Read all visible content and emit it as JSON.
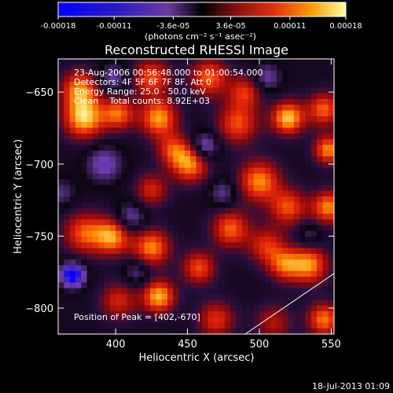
{
  "chart_data": {
    "type": "heatmap",
    "title": "Reconstructed RHESSI Image",
    "xlabel": "Heliocentric X (arcsec)",
    "ylabel": "Heliocentric Y (arcsec)",
    "xlim": [
      360,
      552
    ],
    "ylim": [
      -818,
      -627
    ],
    "x_ticks": [
      400,
      450,
      500,
      550
    ],
    "y_ticks": [
      -650,
      -700,
      -750,
      -800
    ],
    "colorbar": {
      "range": [
        -0.00018,
        0.00018
      ],
      "tick_labels": [
        "-0.00018",
        "-0.00011",
        "-3.6e-05",
        "3.6e-05",
        "0.00011",
        "0.00018"
      ],
      "unit_label": "(photons cm⁻² s⁻¹ asec⁻²)"
    },
    "annotations": [
      "23-Aug-2006 00:56:48.000 to 01:00:54.000",
      "Detectors: 4F 5F 6F 7F 8F, Att 0",
      "Energy Range: 25.0 - 50.0 keV",
      "Clean    Total counts: 8.92E+03"
    ],
    "peak_label": "Position of Peak = [402,-670]",
    "footer_date": "18-Jul-2013 01:09",
    "blobs": [
      {
        "x": 375,
        "y": -648,
        "v": 0.8,
        "s": 9
      },
      {
        "x": 378,
        "y": -668,
        "v": 1.0,
        "s": 10
      },
      {
        "x": 402,
        "y": -665,
        "v": 0.75,
        "s": 8
      },
      {
        "x": 425,
        "y": -640,
        "v": 0.7,
        "s": 9
      },
      {
        "x": 430,
        "y": -668,
        "v": 0.9,
        "s": 9
      },
      {
        "x": 465,
        "y": -640,
        "v": 0.75,
        "s": 9
      },
      {
        "x": 485,
        "y": -672,
        "v": 0.7,
        "s": 10
      },
      {
        "x": 490,
        "y": -650,
        "v": 0.6,
        "s": 8
      },
      {
        "x": 520,
        "y": -668,
        "v": 1.0,
        "s": 8
      },
      {
        "x": 545,
        "y": -662,
        "v": 0.75,
        "s": 8
      },
      {
        "x": 548,
        "y": -690,
        "v": 0.85,
        "s": 7
      },
      {
        "x": 452,
        "y": -700,
        "v": 0.85,
        "s": 9
      },
      {
        "x": 440,
        "y": -690,
        "v": 0.6,
        "s": 8
      },
      {
        "x": 425,
        "y": -718,
        "v": 0.55,
        "s": 8
      },
      {
        "x": 500,
        "y": -712,
        "v": 0.85,
        "s": 10
      },
      {
        "x": 520,
        "y": -730,
        "v": 0.7,
        "s": 9
      },
      {
        "x": 548,
        "y": -730,
        "v": 0.85,
        "s": 8
      },
      {
        "x": 480,
        "y": -745,
        "v": 0.75,
        "s": 9
      },
      {
        "x": 505,
        "y": -757,
        "v": 0.6,
        "s": 9
      },
      {
        "x": 378,
        "y": -748,
        "v": 0.7,
        "s": 10
      },
      {
        "x": 398,
        "y": -750,
        "v": 0.9,
        "s": 9
      },
      {
        "x": 425,
        "y": -758,
        "v": 0.85,
        "s": 9
      },
      {
        "x": 458,
        "y": -772,
        "v": 0.7,
        "s": 8
      },
      {
        "x": 535,
        "y": -770,
        "v": 0.85,
        "s": 9
      },
      {
        "x": 518,
        "y": -770,
        "v": 0.7,
        "s": 8
      },
      {
        "x": 430,
        "y": -792,
        "v": 0.95,
        "s": 8
      },
      {
        "x": 402,
        "y": -795,
        "v": 0.55,
        "s": 9
      },
      {
        "x": 470,
        "y": -808,
        "v": 0.6,
        "s": 9
      },
      {
        "x": 545,
        "y": -808,
        "v": 0.8,
        "s": 8
      },
      {
        "x": 510,
        "y": -810,
        "v": 0.45,
        "s": 9
      },
      {
        "x": 370,
        "y": -777,
        "v": -1.0,
        "s": 6
      },
      {
        "x": 462,
        "y": -688,
        "v": -0.55,
        "s": 7
      },
      {
        "x": 392,
        "y": -700,
        "v": -0.45,
        "s": 9
      },
      {
        "x": 410,
        "y": -738,
        "v": -0.45,
        "s": 8
      },
      {
        "x": 398,
        "y": -640,
        "v": -0.4,
        "s": 7
      },
      {
        "x": 505,
        "y": -640,
        "v": -0.4,
        "s": 7
      },
      {
        "x": 475,
        "y": -720,
        "v": -0.35,
        "s": 7
      },
      {
        "x": 415,
        "y": -775,
        "v": -0.35,
        "s": 7
      },
      {
        "x": 535,
        "y": -750,
        "v": -0.3,
        "s": 6
      },
      {
        "x": 362,
        "y": -720,
        "v": -0.3,
        "s": 7
      }
    ]
  }
}
